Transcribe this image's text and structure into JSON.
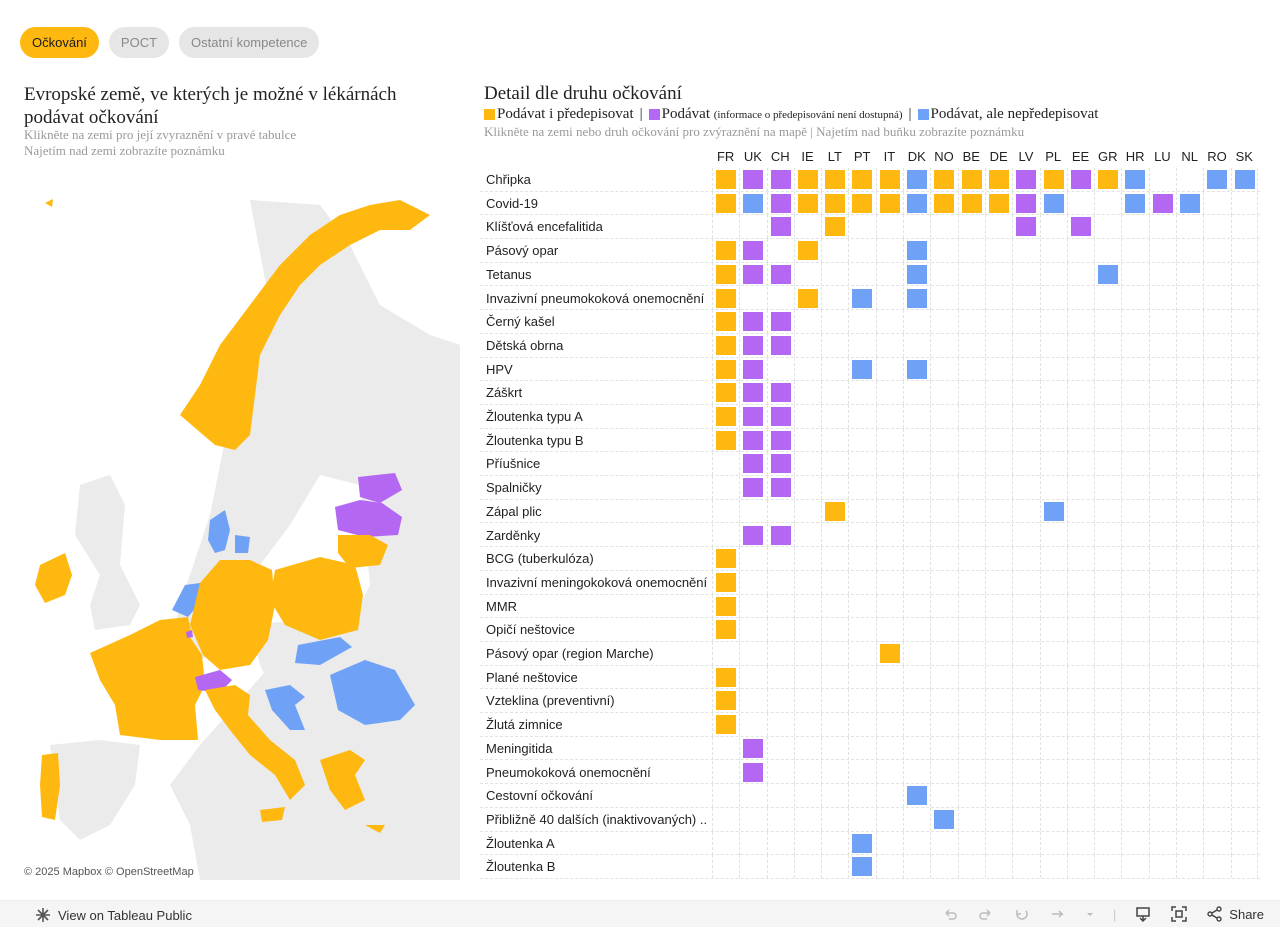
{
  "tabs": [
    {
      "label": "Očkování",
      "active": true
    },
    {
      "label": "POCT",
      "active": false
    },
    {
      "label": "Ostatní kompetence",
      "active": false
    }
  ],
  "left": {
    "title": "Evropské země, ve kterých je možné v lékárnách podávat očkování",
    "subtitle1": "Klikněte na zemi pro její zvyraznění v pravé tabulce",
    "subtitle2": "Najetím nad zemi zobrazíte poznámku",
    "attribution": "© 2025 Mapbox  © OpenStreetMap"
  },
  "right": {
    "title": "Detail dle druhu očkování",
    "legend": {
      "item1": "Podávat i předepisovat",
      "item2": "Podávat",
      "item2_note": "(informace o předepisování není dostupná)",
      "item3": "Podávat, ale nepředepisovat"
    },
    "subtitle": "Klikněte na zemi nebo druh očkování pro zvýraznění na mapě | Najetím nad buňku zobrazíte poznámku"
  },
  "colors": {
    "prescribe": "#ffb80f",
    "administer": "#b367f2",
    "no_prescribe": "#6fa2f6",
    "land": "#ebebeb",
    "sea": "#ffffff"
  },
  "countries": [
    "FR",
    "UK",
    "CH",
    "IE",
    "LT",
    "PT",
    "IT",
    "DK",
    "NO",
    "BE",
    "DE",
    "LV",
    "PL",
    "EE",
    "GR",
    "HR",
    "LU",
    "NL",
    "RO",
    "SK"
  ],
  "rows": [
    {
      "label": "Chřipka",
      "cells": "aPPaaaaBaaaPaPaB..BB"
    },
    {
      "label": "Covid-19",
      "cells": "aBPaaaaBaaaPB..BPB.."
    },
    {
      "label": "Klíšťová encefalitida",
      "cells": "..P.a......P.P......"
    },
    {
      "label": "Pásový opar",
      "cells": "aP.a...B............"
    },
    {
      "label": "Tetanus",
      "cells": "aPP....B......B....."
    },
    {
      "label": "Invazivní pneumokoková onemocnění",
      "cells": "a..a.B.B............"
    },
    {
      "label": "Černý kašel",
      "cells": "aPP................."
    },
    {
      "label": "Dětská obrna",
      "cells": "aPP................."
    },
    {
      "label": "HPV",
      "cells": "aP...B.B............"
    },
    {
      "label": "Záškrt",
      "cells": "aPP................."
    },
    {
      "label": "Žloutenka typu A",
      "cells": "aPP................."
    },
    {
      "label": "Žloutenka typu B",
      "cells": "aPP................."
    },
    {
      "label": "Příušnice",
      "cells": ".PP................."
    },
    {
      "label": "Spalničky",
      "cells": ".PP................."
    },
    {
      "label": "Zápal plic",
      "cells": "....a.......B......."
    },
    {
      "label": "Zarděnky",
      "cells": ".PP................."
    },
    {
      "label": "BCG (tuberkulóza)",
      "cells": "a..................."
    },
    {
      "label": "Invazivní meningokoková onemocnění",
      "cells": "a..................."
    },
    {
      "label": "MMR",
      "cells": "a..................."
    },
    {
      "label": "Opičí neštovice",
      "cells": "a..................."
    },
    {
      "label": "Pásový opar (region Marche)",
      "cells": "......a............."
    },
    {
      "label": "Plané neštovice",
      "cells": "a..................."
    },
    {
      "label": "Vzteklina (preventivní)",
      "cells": "a..................."
    },
    {
      "label": "Žlutá zimnice",
      "cells": "a..................."
    },
    {
      "label": "Meningitida",
      "cells": ".P.................."
    },
    {
      "label": "Pneumokoková onemocnění",
      "cells": ".P.................."
    },
    {
      "label": "Cestovní očkování",
      "cells": ".......B............"
    },
    {
      "label": "Přibližně 40 dalších (inaktivovaných) ..",
      "cells": "........B..........."
    },
    {
      "label": "Žloutenka A",
      "cells": ".....B.............."
    },
    {
      "label": "Žloutenka B",
      "cells": ".....B.............."
    }
  ],
  "footer": {
    "view_label": "View on Tableau Public",
    "share_label": "Share"
  }
}
